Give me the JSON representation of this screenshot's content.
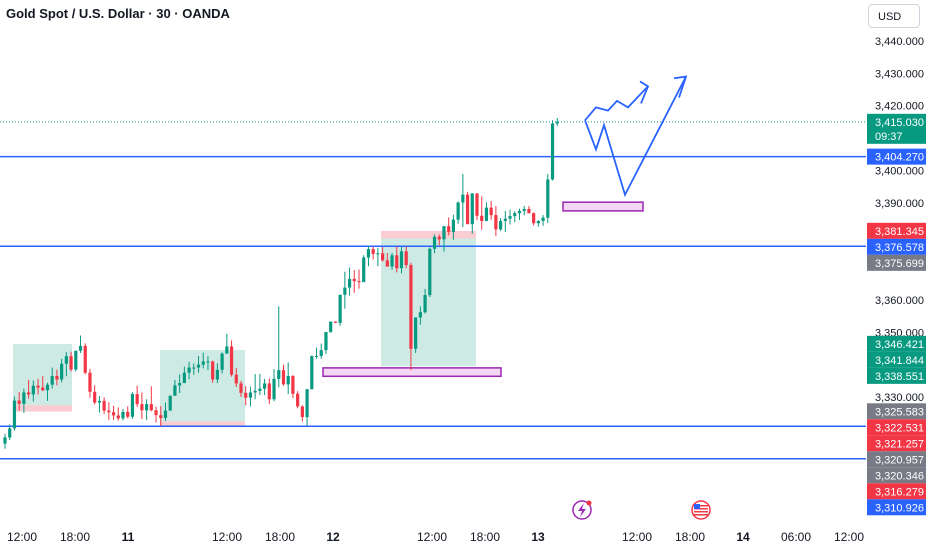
{
  "title": "Gold Spot / U.S. Dollar · 30 · OANDA",
  "currency_button": "USD",
  "colors": {
    "up": "#089981",
    "down": "#f23645",
    "level_line": "#2962ff",
    "last_price": "#089981",
    "zone_border": "#9c27b0",
    "zone_fill": "#f3d7f5",
    "target_box": "#b2dfd7",
    "stop_box": "#f7bcc1",
    "projection": "#2962ff"
  },
  "chart_data": {
    "type": "candlestick",
    "symbol": "XAUUSD",
    "interval": "30",
    "exchange": "OANDA",
    "y_axis": {
      "ylim": [
        3304,
        3445
      ],
      "ticks": [
        3440,
        3430,
        3420,
        3400,
        3390,
        3360,
        3350,
        3330
      ],
      "tick_labels": [
        "3,440.000",
        "3,430.000",
        "3,420.000",
        "3,400.000",
        "3,390.000",
        "3,360.000",
        "3,350.000",
        "3,330.000"
      ]
    },
    "x_axis": {
      "tick_labels": [
        "12:00",
        "18:00",
        "11",
        "12:00",
        "18:00",
        "12",
        "12:00",
        "18:00",
        "13",
        "12:00",
        "18:00",
        "14",
        "06:00",
        "12:00"
      ],
      "bold_labels": [
        "11",
        "12",
        "13",
        "14"
      ]
    },
    "horizontal_levels": [
      3404.27,
      3376.578,
      3320.957,
      3310.926
    ],
    "last_price": {
      "value": "3,415.030",
      "countdown": "09:37",
      "y": 3415.03
    },
    "price_tags": [
      {
        "label": "3,404.270",
        "y": 3404.27,
        "color": "#2962ff"
      },
      {
        "label": "3,381.345",
        "y": 3381.345,
        "color": "#f23645"
      },
      {
        "label": "3,376.578",
        "y": 3376.578,
        "color": "#2962ff"
      },
      {
        "label": "3,375.699",
        "y": 3375.699,
        "color": "#787b86"
      },
      {
        "label": "3,346.421",
        "y": 3346.421,
        "color": "#089981"
      },
      {
        "label": "3,341.844",
        "y": 3341.844,
        "color": "#089981"
      },
      {
        "label": "3,338.551",
        "y": 3338.551,
        "color": "#089981"
      },
      {
        "label": "3,325.583",
        "y": 3325.583,
        "color": "#787b86"
      },
      {
        "label": "3,322.531",
        "y": 3322.531,
        "color": "#f23645"
      },
      {
        "label": "3,321.257",
        "y": 3321.257,
        "color": "#f23645"
      },
      {
        "label": "3,320.957",
        "y": 3320.957,
        "color": "#787b86"
      },
      {
        "label": "3,320.346",
        "y": 3320.346,
        "color": "#787b86"
      },
      {
        "label": "3,316.279",
        "y": 3316.279,
        "color": "#f23645"
      },
      {
        "label": "3,310.926",
        "y": 3310.926,
        "color": "#2962ff"
      }
    ],
    "demand_zones": [
      {
        "y_low": 3336.4,
        "y_high": 3339.0
      },
      {
        "y_low": 3387.5,
        "y_high": 3390.2
      }
    ],
    "position_boxes": [
      {
        "entry": 3327.5,
        "target": 3346.4,
        "stop": 3325.5
      },
      {
        "entry": 3322.5,
        "target": 3344.5,
        "stop": 3320.7
      },
      {
        "entry": 3379.0,
        "target": 3339.5,
        "stop": 3381.3
      }
    ],
    "projection_paths": [
      {
        "points": [
          3415.5,
          3419.5,
          3418.5,
          3421.5,
          3419.5,
          3426.0
        ]
      },
      {
        "points": [
          3415.5,
          3406.5,
          3414.0,
          3392.5,
          3429.0
        ]
      }
    ],
    "candles": [
      {
        "o": 3315.6,
        "h": 3318.6,
        "l": 3314.0,
        "c": 3317.5
      },
      {
        "o": 3317.5,
        "h": 3321.5,
        "l": 3316.7,
        "c": 3320.3
      },
      {
        "o": 3320.3,
        "h": 3330.2,
        "l": 3319.6,
        "c": 3328.9
      },
      {
        "o": 3328.9,
        "h": 3331.5,
        "l": 3325.8,
        "c": 3327.9
      },
      {
        "o": 3327.9,
        "h": 3332.6,
        "l": 3325.1,
        "c": 3331.4
      },
      {
        "o": 3331.4,
        "h": 3335.3,
        "l": 3329.5,
        "c": 3330.8
      },
      {
        "o": 3330.8,
        "h": 3335.1,
        "l": 3328.6,
        "c": 3333.5
      },
      {
        "o": 3333.5,
        "h": 3335.6,
        "l": 3330.8,
        "c": 3332.9
      },
      {
        "o": 3332.9,
        "h": 3336.5,
        "l": 3331.8,
        "c": 3332.1
      },
      {
        "o": 3332.1,
        "h": 3334.4,
        "l": 3328.8,
        "c": 3333.8
      },
      {
        "o": 3333.8,
        "h": 3339.1,
        "l": 3332.6,
        "c": 3336.5
      },
      {
        "o": 3336.5,
        "h": 3338.5,
        "l": 3333.6,
        "c": 3335.4
      },
      {
        "o": 3335.4,
        "h": 3341.8,
        "l": 3334.5,
        "c": 3340.3
      },
      {
        "o": 3340.3,
        "h": 3343.9,
        "l": 3336.4,
        "c": 3342.6
      },
      {
        "o": 3342.6,
        "h": 3344.0,
        "l": 3337.9,
        "c": 3338.5
      },
      {
        "o": 3338.5,
        "h": 3344.3,
        "l": 3337.9,
        "c": 3344.3
      },
      {
        "o": 3344.3,
        "h": 3349.0,
        "l": 3343.6,
        "c": 3345.8
      },
      {
        "o": 3345.8,
        "h": 3346.6,
        "l": 3337.0,
        "c": 3337.5
      },
      {
        "o": 3337.5,
        "h": 3338.7,
        "l": 3329.8,
        "c": 3331.6
      },
      {
        "o": 3331.6,
        "h": 3333.6,
        "l": 3327.7,
        "c": 3328.3
      },
      {
        "o": 3328.3,
        "h": 3330.3,
        "l": 3325.2,
        "c": 3328.8
      },
      {
        "o": 3328.8,
        "h": 3329.9,
        "l": 3324.7,
        "c": 3325.8
      },
      {
        "o": 3325.8,
        "h": 3328.4,
        "l": 3322.9,
        "c": 3325.3
      },
      {
        "o": 3325.3,
        "h": 3327.3,
        "l": 3322.9,
        "c": 3324.3
      },
      {
        "o": 3324.3,
        "h": 3326.8,
        "l": 3322.7,
        "c": 3323.4
      },
      {
        "o": 3323.4,
        "h": 3326.3,
        "l": 3322.8,
        "c": 3325.4
      },
      {
        "o": 3325.4,
        "h": 3327.1,
        "l": 3323.4,
        "c": 3323.9
      },
      {
        "o": 3323.9,
        "h": 3331.5,
        "l": 3323.3,
        "c": 3330.9
      },
      {
        "o": 3330.9,
        "h": 3333.5,
        "l": 3326.9,
        "c": 3327.8
      },
      {
        "o": 3327.8,
        "h": 3331.4,
        "l": 3323.2,
        "c": 3325.9
      },
      {
        "o": 3325.9,
        "h": 3329.3,
        "l": 3322.9,
        "c": 3327.8
      },
      {
        "o": 3327.8,
        "h": 3333.3,
        "l": 3325.6,
        "c": 3325.9
      },
      {
        "o": 3325.9,
        "h": 3327.0,
        "l": 3322.1,
        "c": 3324.4
      },
      {
        "o": 3324.4,
        "h": 3327.2,
        "l": 3321.0,
        "c": 3323.5
      },
      {
        "o": 3323.5,
        "h": 3328.3,
        "l": 3322.6,
        "c": 3325.8
      },
      {
        "o": 3325.8,
        "h": 3330.4,
        "l": 3325.8,
        "c": 3330.4
      },
      {
        "o": 3330.4,
        "h": 3335.3,
        "l": 3330.4,
        "c": 3333.6
      },
      {
        "o": 3333.6,
        "h": 3337.0,
        "l": 3331.2,
        "c": 3334.3
      },
      {
        "o": 3334.3,
        "h": 3339.4,
        "l": 3334.3,
        "c": 3337.5
      },
      {
        "o": 3337.5,
        "h": 3340.9,
        "l": 3335.5,
        "c": 3339.1
      },
      {
        "o": 3339.1,
        "h": 3340.4,
        "l": 3336.9,
        "c": 3339.1
      },
      {
        "o": 3339.1,
        "h": 3342.7,
        "l": 3337.5,
        "c": 3340.0
      },
      {
        "o": 3340.0,
        "h": 3343.7,
        "l": 3338.8,
        "c": 3341.0
      },
      {
        "o": 3341.0,
        "h": 3342.6,
        "l": 3338.3,
        "c": 3341.0
      },
      {
        "o": 3341.0,
        "h": 3341.2,
        "l": 3334.4,
        "c": 3335.4
      },
      {
        "o": 3335.4,
        "h": 3340.4,
        "l": 3334.3,
        "c": 3338.4
      },
      {
        "o": 3338.4,
        "h": 3343.8,
        "l": 3337.3,
        "c": 3343.4
      },
      {
        "o": 3343.4,
        "h": 3349.5,
        "l": 3343.4,
        "c": 3345.6
      },
      {
        "o": 3345.6,
        "h": 3347.5,
        "l": 3336.3,
        "c": 3336.9
      },
      {
        "o": 3336.9,
        "h": 3339.0,
        "l": 3333.1,
        "c": 3334.2
      },
      {
        "o": 3334.2,
        "h": 3335.0,
        "l": 3330.0,
        "c": 3331.3
      },
      {
        "o": 3331.3,
        "h": 3333.4,
        "l": 3327.4,
        "c": 3329.8
      },
      {
        "o": 3329.8,
        "h": 3333.2,
        "l": 3327.1,
        "c": 3331.4
      },
      {
        "o": 3331.4,
        "h": 3337.1,
        "l": 3329.3,
        "c": 3331.9
      },
      {
        "o": 3331.9,
        "h": 3337.1,
        "l": 3330.6,
        "c": 3332.6
      },
      {
        "o": 3332.6,
        "h": 3335.6,
        "l": 3330.6,
        "c": 3334.2
      },
      {
        "o": 3334.2,
        "h": 3335.7,
        "l": 3327.8,
        "c": 3329.3
      },
      {
        "o": 3329.3,
        "h": 3338.6,
        "l": 3328.7,
        "c": 3335.6
      },
      {
        "o": 3335.6,
        "h": 3358.0,
        "l": 3333.0,
        "c": 3338.3
      },
      {
        "o": 3338.3,
        "h": 3340.0,
        "l": 3333.5,
        "c": 3333.9
      },
      {
        "o": 3333.9,
        "h": 3340.7,
        "l": 3330.9,
        "c": 3336.5
      },
      {
        "o": 3336.5,
        "h": 3336.8,
        "l": 3329.7,
        "c": 3331.0
      },
      {
        "o": 3331.0,
        "h": 3331.8,
        "l": 3326.5,
        "c": 3327.1
      },
      {
        "o": 3327.1,
        "h": 3327.4,
        "l": 3322.5,
        "c": 3323.8
      },
      {
        "o": 3323.8,
        "h": 3332.5,
        "l": 3321.1,
        "c": 3332.4
      },
      {
        "o": 3332.4,
        "h": 3342.9,
        "l": 3332.4,
        "c": 3342.6
      },
      {
        "o": 3342.6,
        "h": 3345.3,
        "l": 3341.8,
        "c": 3342.7
      },
      {
        "o": 3342.7,
        "h": 3346.5,
        "l": 3341.8,
        "c": 3344.5
      },
      {
        "o": 3344.5,
        "h": 3350.1,
        "l": 3343.3,
        "c": 3350.1
      },
      {
        "o": 3350.1,
        "h": 3353.3,
        "l": 3349.8,
        "c": 3353.3
      },
      {
        "o": 3353.3,
        "h": 3353.3,
        "l": 3352.9,
        "c": 3352.9
      },
      {
        "o": 3352.9,
        "h": 3361.6,
        "l": 3352.0,
        "c": 3361.6
      },
      {
        "o": 3361.6,
        "h": 3368.7,
        "l": 3357.3,
        "c": 3363.8
      },
      {
        "o": 3363.8,
        "h": 3370.0,
        "l": 3361.3,
        "c": 3366.5
      },
      {
        "o": 3366.5,
        "h": 3369.2,
        "l": 3362.2,
        "c": 3365.8
      },
      {
        "o": 3365.8,
        "h": 3369.4,
        "l": 3363.5,
        "c": 3365.5
      },
      {
        "o": 3365.5,
        "h": 3373.8,
        "l": 3365.5,
        "c": 3373.1
      },
      {
        "o": 3373.1,
        "h": 3376.8,
        "l": 3370.4,
        "c": 3375.7
      },
      {
        "o": 3375.7,
        "h": 3376.4,
        "l": 3372.5,
        "c": 3374.2
      },
      {
        "o": 3374.2,
        "h": 3376.1,
        "l": 3370.4,
        "c": 3374.4
      },
      {
        "o": 3374.4,
        "h": 3376.3,
        "l": 3371.9,
        "c": 3372.2
      },
      {
        "o": 3372.2,
        "h": 3374.5,
        "l": 3370.3,
        "c": 3370.3
      },
      {
        "o": 3370.3,
        "h": 3374.5,
        "l": 3369.3,
        "c": 3373.8
      },
      {
        "o": 3373.8,
        "h": 3376.5,
        "l": 3368.5,
        "c": 3369.8
      },
      {
        "o": 3369.8,
        "h": 3376.4,
        "l": 3368.2,
        "c": 3375.0
      },
      {
        "o": 3375.0,
        "h": 3376.5,
        "l": 3369.8,
        "c": 3370.8
      },
      {
        "o": 3370.8,
        "h": 3371.5,
        "l": 3338.3,
        "c": 3344.9
      },
      {
        "o": 3344.9,
        "h": 3354.6,
        "l": 3343.6,
        "c": 3354.6
      },
      {
        "o": 3354.6,
        "h": 3358.0,
        "l": 3352.3,
        "c": 3356.2
      },
      {
        "o": 3356.2,
        "h": 3363.4,
        "l": 3355.8,
        "c": 3361.5
      },
      {
        "o": 3361.5,
        "h": 3376.2,
        "l": 3360.9,
        "c": 3375.8
      },
      {
        "o": 3375.8,
        "h": 3380.2,
        "l": 3374.4,
        "c": 3379.5
      },
      {
        "o": 3379.5,
        "h": 3380.2,
        "l": 3376.9,
        "c": 3378.7
      },
      {
        "o": 3378.7,
        "h": 3382.8,
        "l": 3374.9,
        "c": 3382.8
      },
      {
        "o": 3382.8,
        "h": 3385.5,
        "l": 3380.0,
        "c": 3381.0
      },
      {
        "o": 3381.0,
        "h": 3386.3,
        "l": 3378.6,
        "c": 3384.8
      },
      {
        "o": 3384.8,
        "h": 3390.4,
        "l": 3383.5,
        "c": 3390.1
      },
      {
        "o": 3390.1,
        "h": 3398.9,
        "l": 3382.5,
        "c": 3392.5
      },
      {
        "o": 3392.5,
        "h": 3393.4,
        "l": 3383.4,
        "c": 3383.4
      },
      {
        "o": 3383.4,
        "h": 3393.0,
        "l": 3380.5,
        "c": 3392.9
      },
      {
        "o": 3392.9,
        "h": 3393.0,
        "l": 3384.7,
        "c": 3386.0
      },
      {
        "o": 3386.0,
        "h": 3392.0,
        "l": 3381.7,
        "c": 3384.4
      },
      {
        "o": 3384.4,
        "h": 3390.2,
        "l": 3384.3,
        "c": 3388.5
      },
      {
        "o": 3388.5,
        "h": 3390.6,
        "l": 3384.8,
        "c": 3386.2
      },
      {
        "o": 3386.2,
        "h": 3389.0,
        "l": 3379.7,
        "c": 3381.8
      },
      {
        "o": 3381.8,
        "h": 3385.3,
        "l": 3381.3,
        "c": 3384.4
      },
      {
        "o": 3384.4,
        "h": 3387.5,
        "l": 3381.0,
        "c": 3385.1
      },
      {
        "o": 3385.1,
        "h": 3387.9,
        "l": 3383.3,
        "c": 3385.9
      },
      {
        "o": 3385.9,
        "h": 3387.4,
        "l": 3384.0,
        "c": 3386.8
      },
      {
        "o": 3386.8,
        "h": 3388.2,
        "l": 3384.7,
        "c": 3387.5
      },
      {
        "o": 3387.5,
        "h": 3389.0,
        "l": 3386.2,
        "c": 3388.1
      },
      {
        "o": 3388.1,
        "h": 3389.0,
        "l": 3386.7,
        "c": 3386.8
      },
      {
        "o": 3386.8,
        "h": 3387.0,
        "l": 3383.0,
        "c": 3383.7
      },
      {
        "o": 3383.7,
        "h": 3384.6,
        "l": 3382.6,
        "c": 3384.4
      },
      {
        "o": 3384.4,
        "h": 3386.2,
        "l": 3382.9,
        "c": 3385.4
      },
      {
        "o": 3385.4,
        "h": 3398.9,
        "l": 3383.8,
        "c": 3397.2
      },
      {
        "o": 3397.2,
        "h": 3415.5,
        "l": 3396.9,
        "c": 3414.5
      },
      {
        "o": 3414.5,
        "h": 3416.2,
        "l": 3413.7,
        "c": 3415.0
      }
    ]
  }
}
